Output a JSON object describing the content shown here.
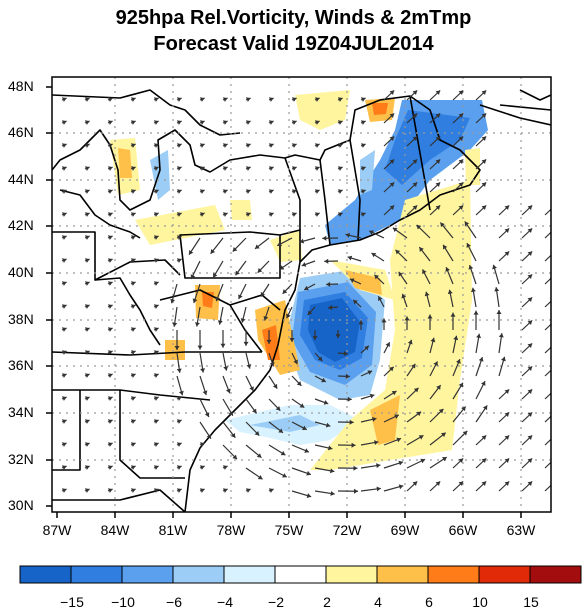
{
  "header": {
    "title_line1": "925hpa Rel.Vorticity, Winds & 2mTmp",
    "title_line2": "Forecast Valid 19Z04JUL2014"
  },
  "axes": {
    "lat_labels": [
      "48N",
      "46N",
      "44N",
      "42N",
      "40N",
      "38N",
      "36N",
      "34N",
      "32N",
      "30N"
    ],
    "lon_labels": [
      "87W",
      "84W",
      "81W",
      "78W",
      "75W",
      "72W",
      "69W",
      "66W",
      "63W"
    ]
  },
  "colorbar": {
    "labels": [
      "−15",
      "−10",
      "−6",
      "−4",
      "−2",
      "2",
      "4",
      "6",
      "10",
      "15"
    ],
    "colors": [
      "#1764c8",
      "#2f7ee0",
      "#5aa0ef",
      "#9ccdf6",
      "#d8f2ff",
      "#ffffff",
      "#fff59e",
      "#ffc04a",
      "#ff7c18",
      "#e02a08",
      "#a40d0d"
    ]
  },
  "map_colors": {
    "land_border": "#000000",
    "grid": "#9a9a9a",
    "arrow": "#333333"
  }
}
